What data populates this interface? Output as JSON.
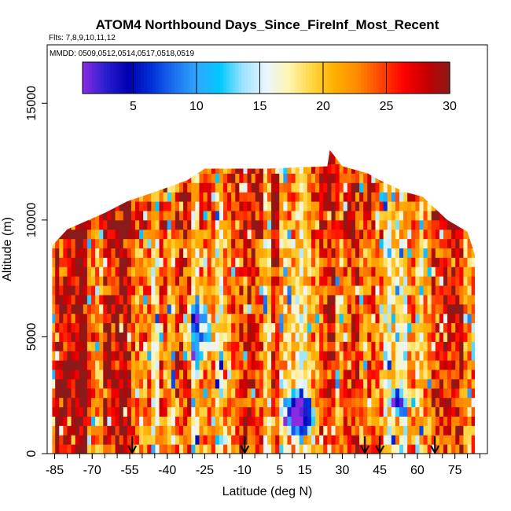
{
  "chart_data": {
    "type": "heatmap",
    "title": "ATOM4 Northbound Days_Since_FireInf_Most_Recent",
    "flights_label": "Flts: 7,8,9,10,11,12",
    "dates_label": "MMDD: 0509,0512,0514,0517,0518,0519",
    "xlabel": "Latitude (deg N)",
    "ylabel": "Altitude (m)",
    "xlim": [
      -88,
      88
    ],
    "ylim": [
      0,
      17500
    ],
    "x_ticks": [
      -85,
      -70,
      -55,
      -40,
      -25,
      -10,
      5,
      15,
      30,
      45,
      60,
      75
    ],
    "x_minor_step": 5,
    "y_ticks": [
      0,
      5000,
      10000,
      15000
    ],
    "colorbar": {
      "min": 1,
      "max": 30,
      "ticks": [
        5,
        10,
        15,
        20,
        25,
        30
      ],
      "colors": [
        "#8a2be2",
        "#2a1fd0",
        "#0000b0",
        "#0030d8",
        "#1e6ff0",
        "#2fa8ff",
        "#00c8ff",
        "#9ee3ff",
        "#e8f6ff",
        "#fff4b0",
        "#ffd640",
        "#ffae00",
        "#ff8800",
        "#ff4500",
        "#ff0000",
        "#c40000",
        "#8b1a1a"
      ]
    },
    "profile_markers_lat": [
      -54,
      -9,
      39,
      45,
      67
    ],
    "altitude_envelope": [
      {
        "lat": -86,
        "top": 8900
      },
      {
        "lat": -80,
        "top": 9600
      },
      {
        "lat": -65,
        "top": 10300
      },
      {
        "lat": -56,
        "top": 10800
      },
      {
        "lat": -45,
        "top": 11200
      },
      {
        "lat": -32,
        "top": 11700
      },
      {
        "lat": -25,
        "top": 12200
      },
      {
        "lat": 0,
        "top": 12200
      },
      {
        "lat": 24,
        "top": 12300
      },
      {
        "lat": 25,
        "top": 13000
      },
      {
        "lat": 30,
        "top": 12300
      },
      {
        "lat": 40,
        "top": 12000
      },
      {
        "lat": 45,
        "top": 11700
      },
      {
        "lat": 55,
        "top": 11200
      },
      {
        "lat": 62,
        "top": 11000
      },
      {
        "lat": 68,
        "top": 10400
      },
      {
        "lat": 72,
        "top": 10000
      },
      {
        "lat": 80,
        "top": 9500
      },
      {
        "lat": 83,
        "top": 8500
      }
    ],
    "data_regions": [
      {
        "lat_min": 48,
        "lat_max": 56,
        "alt_min": 1500,
        "alt_max": 3000,
        "value": 9,
        "note": "blue pocket, low altitude"
      },
      {
        "lat_min": 5,
        "lat_max": 20,
        "alt_min": 500,
        "alt_max": 3000,
        "value": 4,
        "note": "deep blue core near equator"
      },
      {
        "lat_min": -35,
        "lat_max": -20,
        "alt_min": 3500,
        "alt_max": 7000,
        "value": 12,
        "note": "mixed blue/white band"
      },
      {
        "lat_min": -86,
        "lat_max": -60,
        "alt_min": 0,
        "alt_max": 9000,
        "value": 26,
        "note": "predominantly red/orange"
      },
      {
        "lat_min": 60,
        "lat_max": 83,
        "alt_min": 0,
        "alt_max": 9500,
        "value": 24,
        "note": "orange/red"
      }
    ]
  }
}
